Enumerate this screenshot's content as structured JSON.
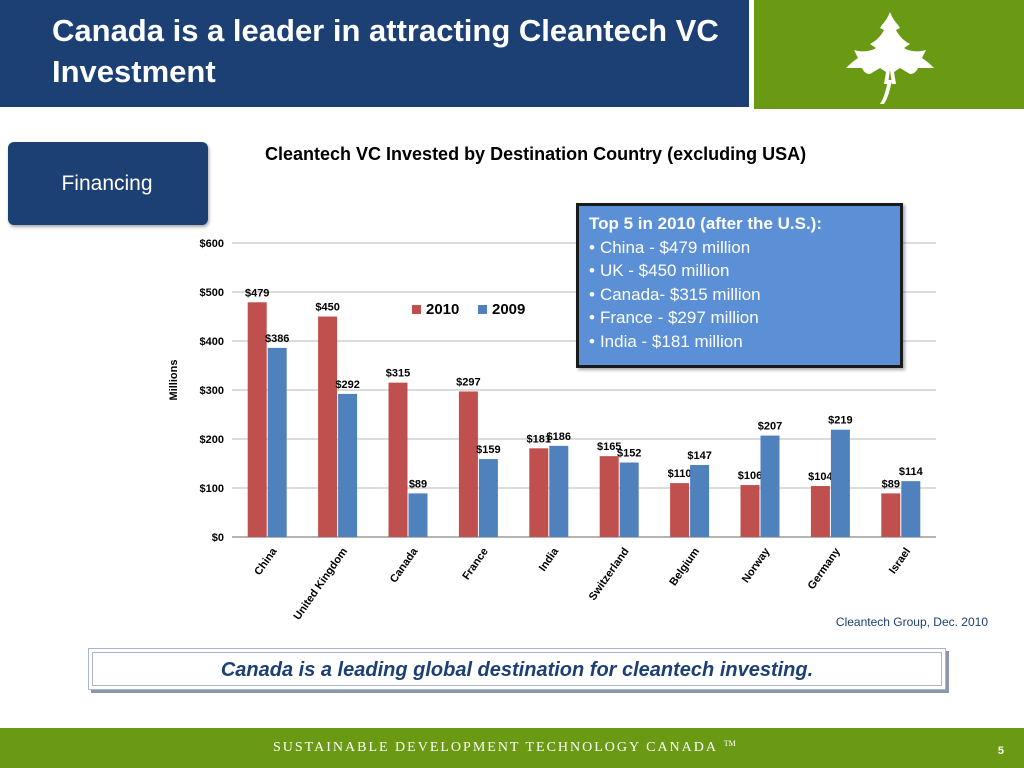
{
  "slide": {
    "title": "Canada is a leader in attracting Cleantech VC Investment",
    "section_tab": "Financing",
    "source": "Cleantech Group, Dec. 2010",
    "banner": "Canada is a leading global destination for cleantech investing.",
    "footer_text": "Sustainable Development Technology Canada",
    "footer_tm": "TM",
    "page_number": "5",
    "logo_icon": "maple-leaf-icon"
  },
  "callout": {
    "heading": "Top 5 in 2010 (after the U.S.):",
    "items": [
      "China - $479 million",
      "UK - $450 million",
      "Canada- $315 million",
      "France - $297 million",
      "India - $181 million"
    ]
  },
  "colors": {
    "navy": "#1c3f74",
    "green": "#6a9a13",
    "series_2010": "#c0504d",
    "series_2009": "#4f81bd",
    "callout_bg": "#5b8fd6"
  },
  "chart_data": {
    "type": "bar",
    "title": "Cleantech VC Invested by Destination Country (excluding USA)",
    "ylabel": "Millions",
    "xlabel": "",
    "ylim": [
      0,
      600
    ],
    "yticks": [
      "$0",
      "$100",
      "$200",
      "$300",
      "$400",
      "$500",
      "$600"
    ],
    "grid": true,
    "legend_position": "top-center",
    "categories": [
      "China",
      "United Kingdom",
      "Canada",
      "France",
      "India",
      "Switzerland",
      "Belgium",
      "Norway",
      "Germany",
      "Israel"
    ],
    "series": [
      {
        "name": "2010",
        "color": "#c0504d",
        "values": [
          479,
          450,
          315,
          297,
          181,
          165,
          110,
          106,
          104,
          89
        ],
        "labels": [
          "$479",
          "$450",
          "$315",
          "$297",
          "$181",
          "$165",
          "$110",
          "$106",
          "$104",
          "$89"
        ]
      },
      {
        "name": "2009",
        "color": "#4f81bd",
        "values": [
          386,
          292,
          89,
          159,
          186,
          152,
          147,
          207,
          219,
          114
        ],
        "labels": [
          "$386",
          "$292",
          "$89",
          "$159",
          "$186",
          "$152",
          "$147",
          "$207",
          "$219",
          "$114"
        ]
      }
    ]
  }
}
